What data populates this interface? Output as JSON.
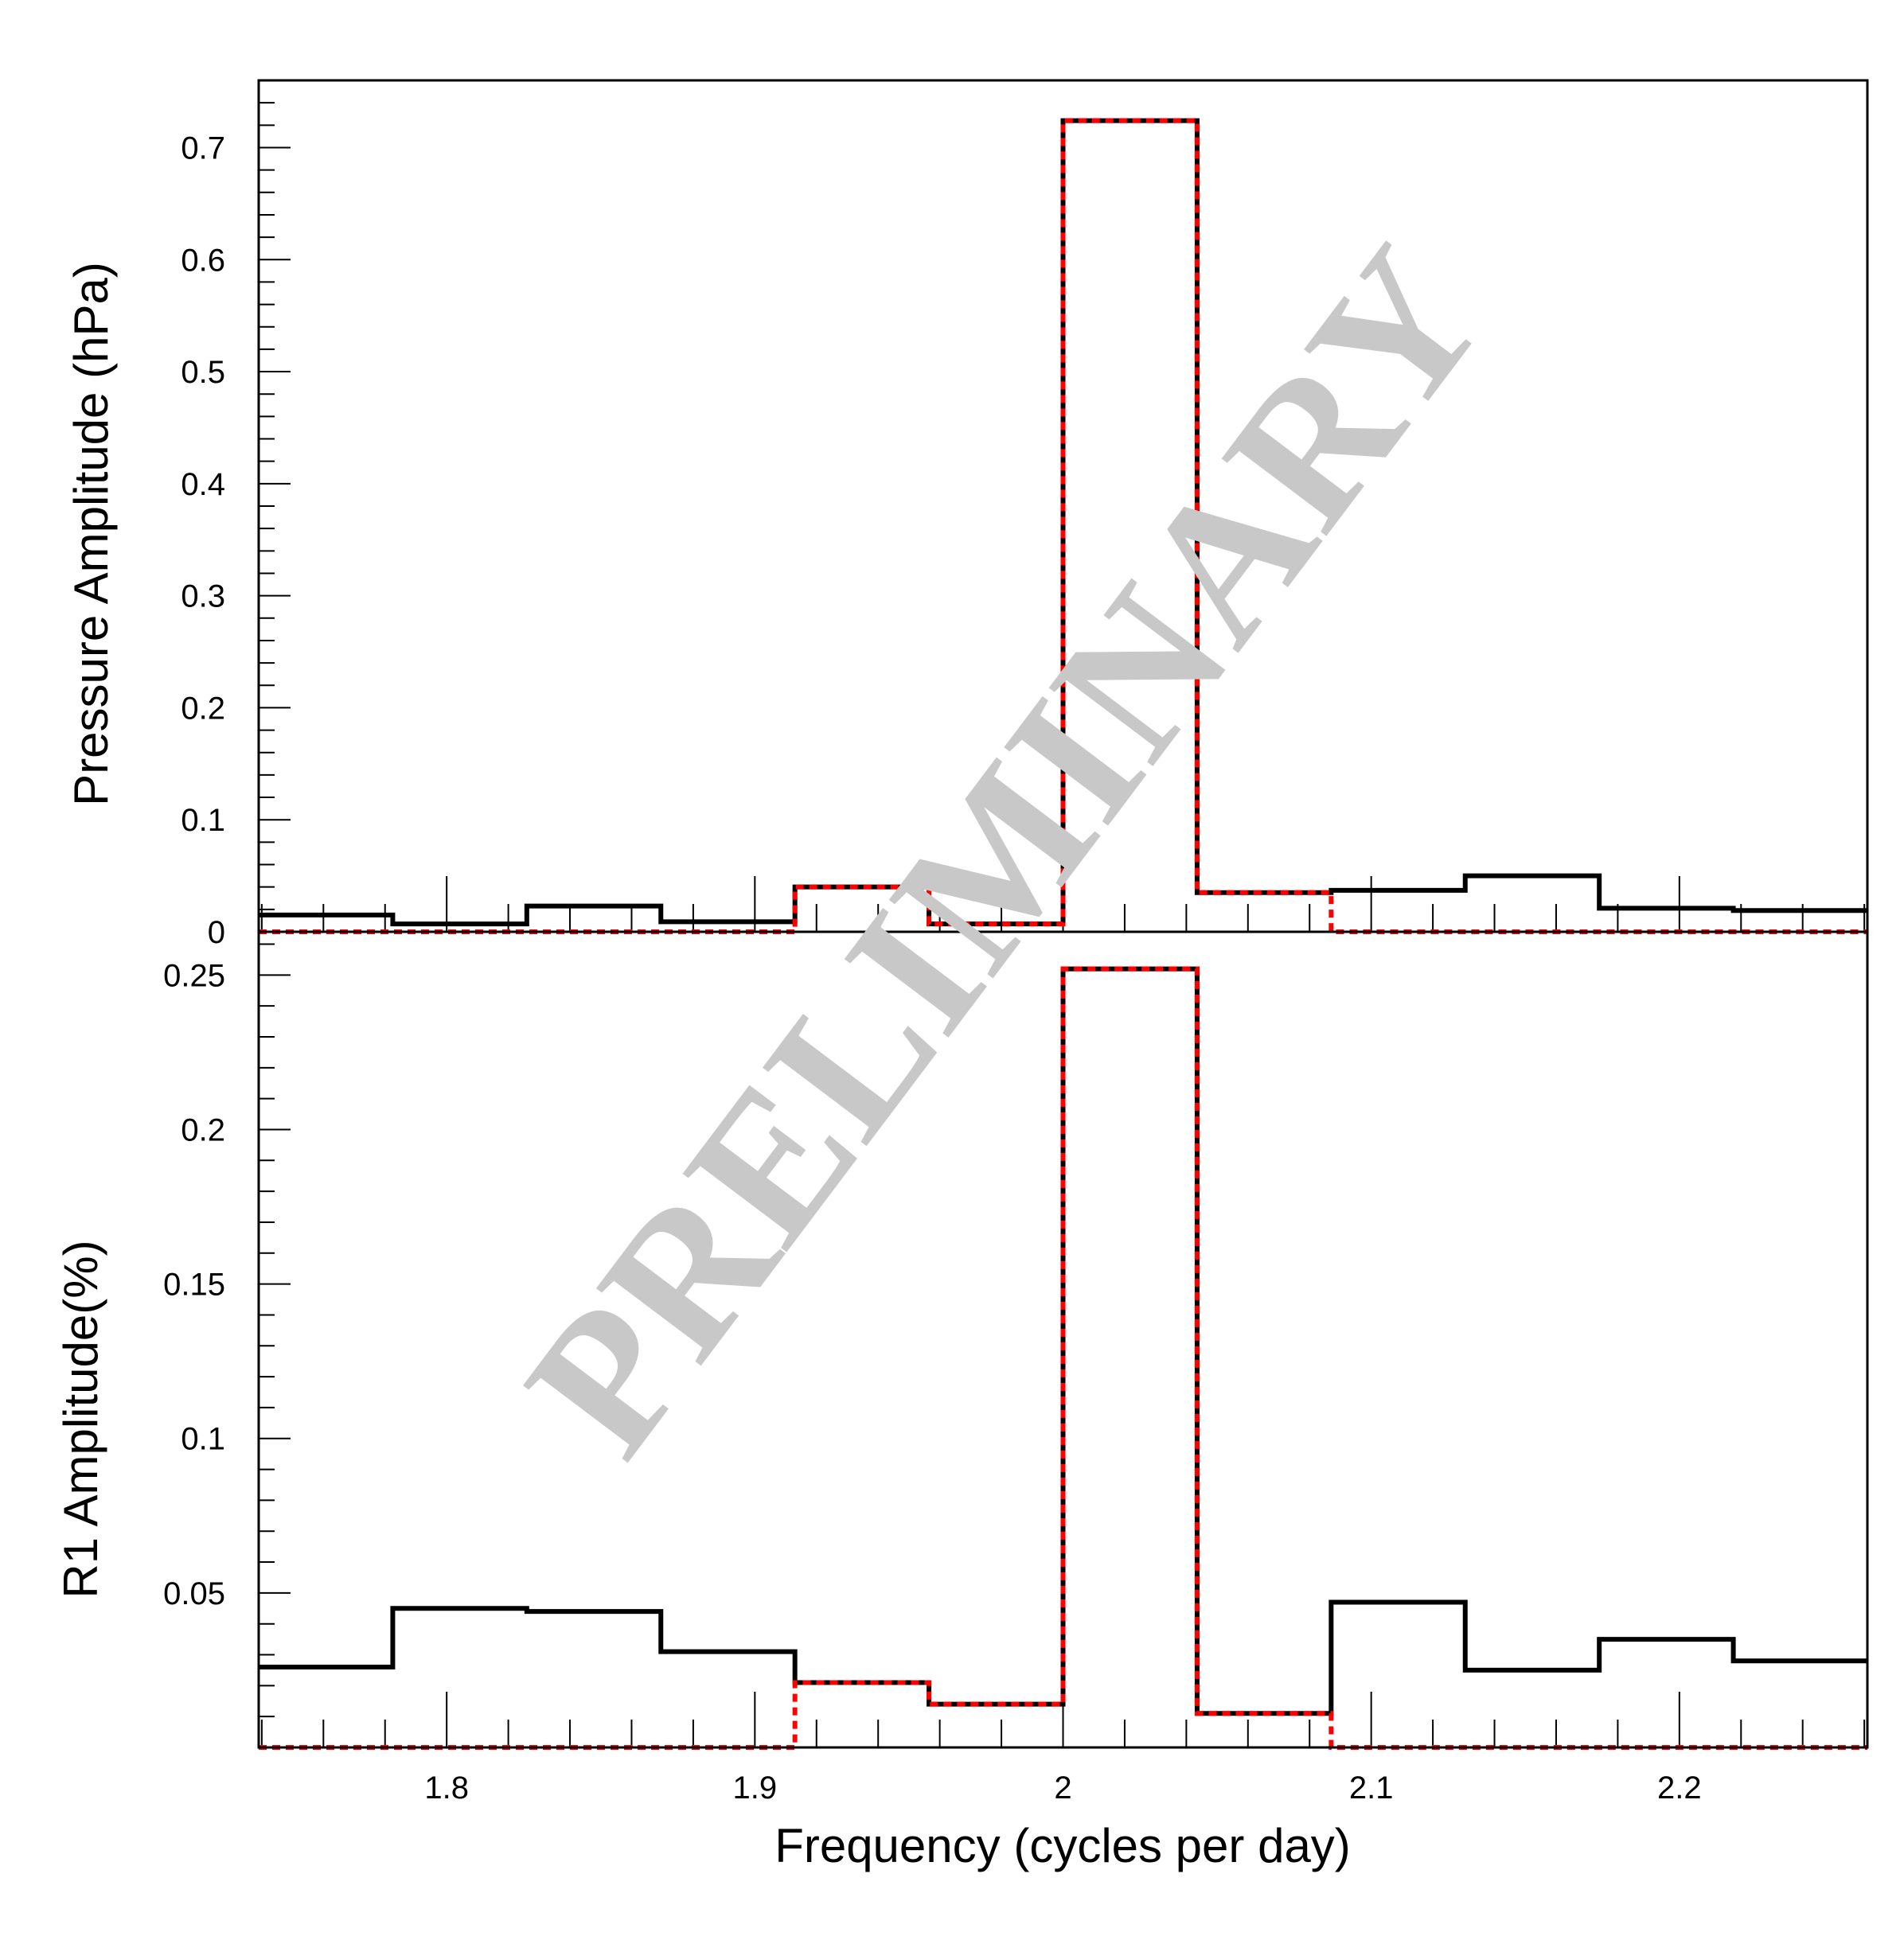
{
  "chart_data": [
    {
      "type": "step",
      "ylabel": "Pressure Amplitude (hPa)",
      "ylim": [
        0,
        0.76
      ],
      "yticks": [
        0,
        0.1,
        0.2,
        0.3,
        0.4,
        0.5,
        0.6,
        0.7
      ],
      "ytick_labels": [
        "0",
        "0.1",
        "0.2",
        "0.3",
        "0.4",
        "0.5",
        "0.6",
        "0.7"
      ],
      "xlim": [
        1.739,
        2.261
      ],
      "bin_edges": [
        1.739,
        1.7825,
        1.826,
        1.8695,
        1.913,
        1.9565,
        2.0,
        2.0435,
        2.087,
        2.1305,
        2.174,
        2.2175,
        2.261
      ],
      "series": [
        {
          "color": "#000000",
          "linestyle": "solid",
          "values": [
            0.015,
            0.007,
            0.023,
            0.009,
            0.04,
            0.007,
            0.724,
            0.035,
            0.037,
            0.05,
            0.021,
            0.019
          ]
        },
        {
          "color": "#ff0000",
          "linestyle": "dashed",
          "values": [
            0,
            0,
            0,
            0,
            0.04,
            0.007,
            0.724,
            0.035,
            0,
            0,
            0,
            0
          ]
        }
      ]
    },
    {
      "type": "step",
      "ylabel": "R1 Amplitude(%)",
      "xlabel": "Frequency (cycles per day)",
      "ylim": [
        0,
        0.264
      ],
      "yticks": [
        0.05,
        0.1,
        0.15,
        0.2,
        0.25
      ],
      "ytick_labels": [
        "0.05",
        "0.1",
        "0.15",
        "0.2",
        "0.25"
      ],
      "xlim": [
        1.739,
        2.261
      ],
      "xticks": [
        1.8,
        1.9,
        2.0,
        2.1,
        2.2
      ],
      "xtick_labels": [
        "1.8",
        "1.9",
        "2",
        "2.1",
        "2.2"
      ],
      "bin_edges": [
        1.739,
        1.7825,
        1.826,
        1.8695,
        1.913,
        1.9565,
        2.0,
        2.0435,
        2.087,
        2.1305,
        2.174,
        2.2175,
        2.261
      ],
      "series": [
        {
          "color": "#000000",
          "linestyle": "solid",
          "values": [
            0.026,
            0.045,
            0.044,
            0.031,
            0.021,
            0.014,
            0.252,
            0.011,
            0.047,
            0.025,
            0.035,
            0.028
          ]
        },
        {
          "color": "#ff0000",
          "linestyle": "dashed",
          "values": [
            0,
            0,
            0,
            0,
            0.021,
            0.014,
            0.252,
            0.011,
            0,
            0,
            0,
            0
          ]
        }
      ]
    }
  ],
  "watermark": {
    "text": "PRELIMINARY",
    "color": "#c8c8c8"
  }
}
